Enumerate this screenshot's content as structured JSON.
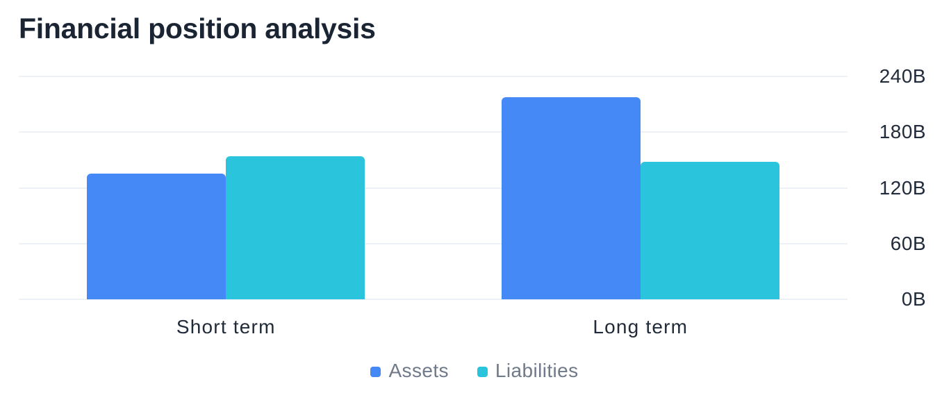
{
  "chart_data": {
    "type": "bar",
    "title": "Financial position analysis",
    "categories": [
      "Short term",
      "Long term"
    ],
    "series": [
      {
        "name": "Assets",
        "color": "#4589f6",
        "values": [
          135.4,
          217.4
        ]
      },
      {
        "name": "Liabilities",
        "color": "#2ac4dc",
        "values": [
          154.0,
          148.1
        ]
      }
    ],
    "value_unit": "B",
    "ylim": [
      0,
      240
    ],
    "y_ticks": [
      {
        "value": 240,
        "label": "240B"
      },
      {
        "value": 180,
        "label": "180B"
      },
      {
        "value": 120,
        "label": "120B"
      },
      {
        "value": 60,
        "label": "60B"
      },
      {
        "value": 0,
        "label": "0B"
      }
    ],
    "axis_side": "right",
    "legend_position": "bottom",
    "grid": "horizontal-lines"
  },
  "colors": {
    "background": "#ffffff",
    "title_text": "#1a2433",
    "axis_text": "#212b3a",
    "legend_text": "#6f7a8a",
    "gridline": "#edf1f6"
  }
}
